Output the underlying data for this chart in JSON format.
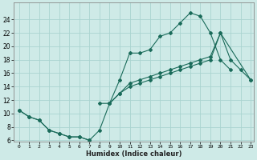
{
  "xlabel": "Humidex (Indice chaleur)",
  "bg_color": "#ceeae7",
  "grid_color": "#aad4d0",
  "line_color": "#1a6b5a",
  "xmin": 0,
  "xmax": 23,
  "ymin": 6,
  "ymax": 26,
  "yticks": [
    6,
    8,
    10,
    12,
    14,
    16,
    18,
    20,
    22,
    24
  ],
  "xtick_labels": [
    "0",
    "1",
    "2",
    "3",
    "4",
    "5",
    "6",
    "7",
    "8",
    "9",
    "10",
    "11",
    "12",
    "13",
    "14",
    "15",
    "16",
    "17",
    "18",
    "19",
    "20",
    "21",
    "22",
    "23"
  ],
  "line1_x": [
    0,
    1,
    2,
    3,
    4,
    5,
    6,
    7,
    8,
    9,
    10,
    11,
    12,
    13,
    14,
    15,
    16,
    17,
    18,
    19,
    20,
    21
  ],
  "line1_y": [
    10.5,
    9.5,
    9.0,
    7.5,
    7.0,
    6.5,
    6.5,
    6.0,
    7.5,
    11.5,
    15.0,
    19.0,
    19.0,
    19.5,
    21.5,
    22.0,
    23.5,
    25.0,
    24.5,
    22.0,
    18.0,
    16.5
  ],
  "line2_x": [
    0,
    1,
    2,
    3,
    4,
    5,
    6,
    7
  ],
  "line2_y": [
    10.5,
    9.5,
    9.0,
    7.5,
    7.0,
    6.5,
    6.5,
    6.0
  ],
  "line2b_x": [
    9,
    10,
    11,
    12,
    13,
    14,
    15,
    16,
    17,
    18,
    19,
    20,
    23
  ],
  "line2b_y": [
    11.5,
    13.0,
    14.0,
    14.5,
    15.0,
    15.5,
    16.0,
    16.5,
    17.0,
    17.5,
    18.0,
    22.0,
    15.0
  ],
  "line3_x": [
    8,
    9,
    10,
    11,
    12,
    13,
    14,
    15,
    16,
    17,
    18,
    19,
    20,
    21,
    22,
    23
  ],
  "line3_y": [
    11.5,
    11.5,
    13.0,
    14.5,
    15.0,
    15.5,
    16.0,
    16.5,
    17.0,
    17.5,
    18.0,
    18.5,
    22.0,
    18.0,
    16.5,
    15.0
  ]
}
